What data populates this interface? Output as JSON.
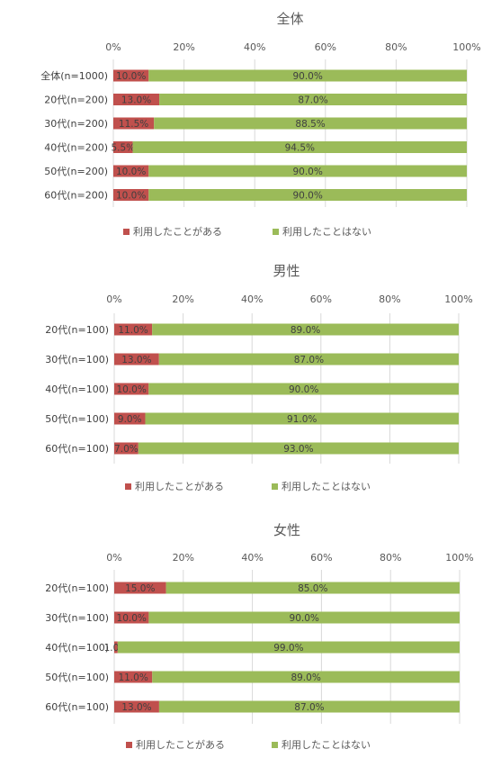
{
  "colors": {
    "used": "#c0504d",
    "not_used": "#9bbb59"
  },
  "chart_data": [
    {
      "type": "bar",
      "orientation": "horizontal",
      "stacked": "percent",
      "title": "全体",
      "categories": [
        "全体(n=1000)",
        "20代(n=200)",
        "30代(n=200)",
        "40代(n=200)",
        "50代(n=200)",
        "60代(n=200)"
      ],
      "series": [
        {
          "name": "利用したことがある",
          "values": [
            10.0,
            13.0,
            11.5,
            5.5,
            10.0,
            10.0
          ],
          "labels": [
            "10.0%",
            "13.0%",
            "11.5%",
            "5.5%",
            "10.0%",
            "10.0%"
          ]
        },
        {
          "name": "利用したことはない",
          "values": [
            90.0,
            87.0,
            88.5,
            94.5,
            90.0,
            90.0
          ],
          "labels": [
            "90.0%",
            "87.0%",
            "88.5%",
            "94.5%",
            "90.0%",
            "90.0%"
          ]
        }
      ],
      "xticks": [
        "0%",
        "20%",
        "40%",
        "60%",
        "80%",
        "100%"
      ],
      "xlim": [
        0,
        100
      ],
      "grid": true,
      "legend": "bottom"
    },
    {
      "type": "bar",
      "orientation": "horizontal",
      "stacked": "percent",
      "title": "男性",
      "categories": [
        "20代(n=100)",
        "30代(n=100)",
        "40代(n=100)",
        "50代(n=100)",
        "60代(n=100)"
      ],
      "series": [
        {
          "name": "利用したことがある",
          "values": [
            11.0,
            13.0,
            10.0,
            9.0,
            7.0
          ],
          "labels": [
            "11.0%",
            "13.0%",
            "10.0%",
            "9.0%",
            "7.0%"
          ]
        },
        {
          "name": "利用したことはない",
          "values": [
            89.0,
            87.0,
            90.0,
            91.0,
            93.0
          ],
          "labels": [
            "89.0%",
            "87.0%",
            "90.0%",
            "91.0%",
            "93.0%"
          ]
        }
      ],
      "xticks": [
        "0%",
        "20%",
        "40%",
        "60%",
        "80%",
        "100%"
      ],
      "xlim": [
        0,
        100
      ],
      "grid": true,
      "legend": "bottom"
    },
    {
      "type": "bar",
      "orientation": "horizontal",
      "stacked": "percent",
      "title": "女性",
      "categories": [
        "20代(n=100)",
        "30代(n=100)",
        "40代(n=100)",
        "50代(n=100)",
        "60代(n=100)"
      ],
      "series": [
        {
          "name": "利用したことがある",
          "values": [
            15.0,
            10.0,
            1.0,
            11.0,
            13.0
          ],
          "labels": [
            "15.0%",
            "10.0%",
            "1.0%",
            "11.0%",
            "13.0%"
          ]
        },
        {
          "name": "利用したことはない",
          "values": [
            85.0,
            90.0,
            99.0,
            89.0,
            87.0
          ],
          "labels": [
            "85.0%",
            "90.0%",
            "99.0%",
            "89.0%",
            "87.0%"
          ]
        }
      ],
      "xticks": [
        "0%",
        "20%",
        "40%",
        "60%",
        "80%",
        "100%"
      ],
      "xlim": [
        0,
        100
      ],
      "grid": true,
      "legend": "bottom"
    }
  ]
}
